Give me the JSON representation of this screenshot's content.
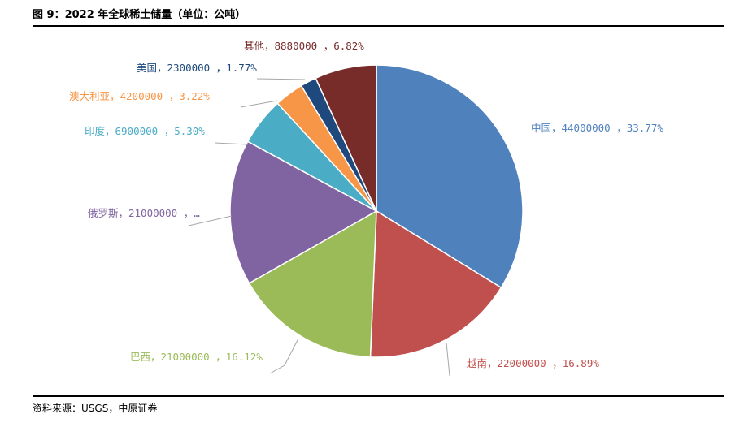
{
  "header": {
    "title": "图 9：2022 年全球稀土储量（单位：公吨）"
  },
  "footer": {
    "source": "资料来源：USGS，中原证券"
  },
  "chart_data": {
    "type": "pie",
    "title": "",
    "slices": [
      {
        "name": "中国",
        "value": 44000000,
        "percent": "33.77%",
        "color": "#4F81BD",
        "label_color": "#4F81BD",
        "label": "中国，44000000 ，33.77%"
      },
      {
        "name": "越南",
        "value": 22000000,
        "percent": "16.89%",
        "color": "#C0504D",
        "label_color": "#C0504D",
        "label": "越南，22000000 ，16.89%"
      },
      {
        "name": "巴西",
        "value": 21000000,
        "percent": "16.12%",
        "color": "#9BBB59",
        "label_color": "#9BBB59",
        "label": "巴西，21000000 ，16.12%"
      },
      {
        "name": "俄罗斯",
        "value": 21000000,
        "percent": "16.12%",
        "color": "#8064A2",
        "label_color": "#8064A2",
        "label": "俄罗斯，21000000 ，…"
      },
      {
        "name": "印度",
        "value": 6900000,
        "percent": "5.30%",
        "color": "#4BACC6",
        "label_color": "#4BACC6",
        "label": "印度，6900000 ，5.30%"
      },
      {
        "name": "澳大利亚",
        "value": 4200000,
        "percent": "3.22%",
        "color": "#F79646",
        "label_color": "#F79646",
        "label": "澳大利亚，4200000 ，3.22%"
      },
      {
        "name": "美国",
        "value": 2300000,
        "percent": "1.77%",
        "color": "#1F497D",
        "label_color": "#1F497D",
        "label": "美国，2300000 ，1.77%"
      },
      {
        "name": "其他",
        "value": 8880000,
        "percent": "6.82%",
        "color": "#772C2A",
        "label_color": "#772C2A",
        "label": "其他，8880000 ，6.82%"
      }
    ]
  }
}
